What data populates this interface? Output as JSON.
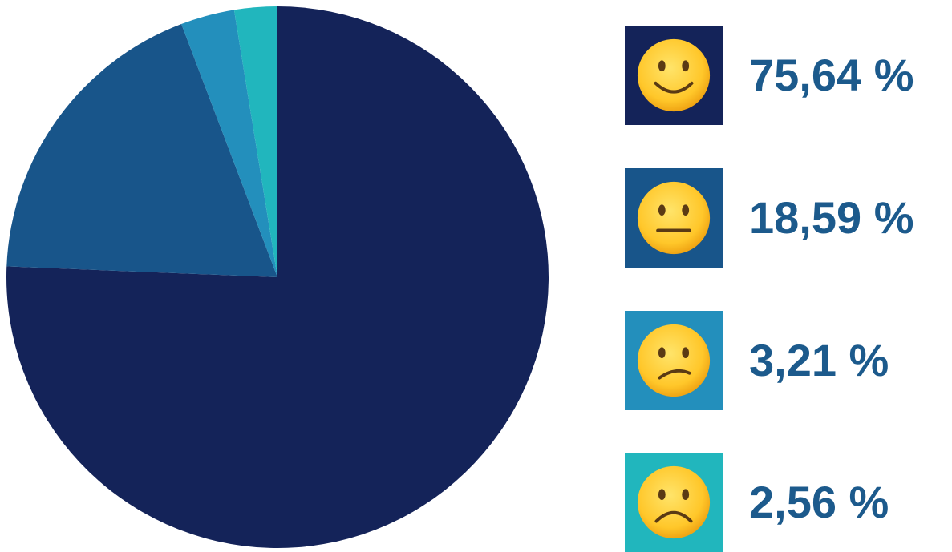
{
  "chart_data": {
    "type": "pie",
    "start": "12 o'clock",
    "direction": "clockwise",
    "slices": [
      {
        "value": 75.64,
        "label": "75,64 %",
        "color": "#142359",
        "icon": "smiling-face-icon"
      },
      {
        "value": 18.59,
        "label": "18,59 %",
        "color": "#18558a",
        "icon": "neutral-face-icon"
      },
      {
        "value": 3.21,
        "label": "3,21 %",
        "color": "#238fbc",
        "icon": "confused-face-icon"
      },
      {
        "value": 2.56,
        "label": "2,56 %",
        "color": "#21b6bd",
        "icon": "frowning-face-icon"
      }
    ]
  }
}
